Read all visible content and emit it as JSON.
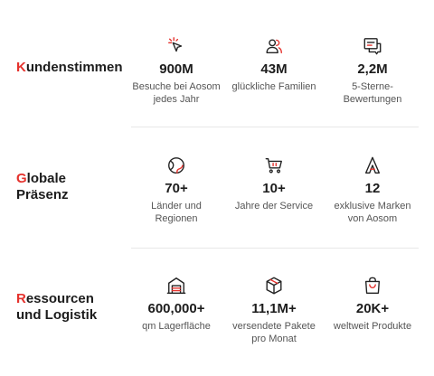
{
  "sections": [
    {
      "title_first": "K",
      "title_rest": "undenstimmen",
      "stats": [
        {
          "icon": "click-sparkle-icon",
          "value": "900M",
          "label_lines": [
            "Besuche bei Aosom",
            "jedes Jahr"
          ]
        },
        {
          "icon": "users-icon",
          "value": "43M",
          "label_lines": [
            "glückliche Familien"
          ]
        },
        {
          "icon": "review-chat-icon",
          "value": "2,2M",
          "label_lines": [
            "5-Sterne-",
            "Bewertungen"
          ]
        }
      ]
    },
    {
      "title_first": "G",
      "title_rest_line1": "lobale",
      "title_line2": "Präsenz",
      "stats": [
        {
          "icon": "globe-icon",
          "value": "70+",
          "label_lines": [
            "Länder und",
            "Regionen"
          ]
        },
        {
          "icon": "shopping-cart-icon",
          "value": "10+",
          "label_lines": [
            "Jahre der Service"
          ]
        },
        {
          "icon": "brand-a-icon",
          "value": "12",
          "label_lines": [
            "exklusive Marken",
            "von Aosom"
          ]
        }
      ]
    },
    {
      "title_first": "R",
      "title_rest_line1": "essourcen",
      "title_line2": "und Logistik",
      "stats": [
        {
          "icon": "warehouse-icon",
          "value": "600,000+",
          "label_lines": [
            "qm Lagerfläche"
          ]
        },
        {
          "icon": "package-icon",
          "value": "11,1M+",
          "label_lines": [
            "versendete Pakete",
            "pro Monat"
          ]
        },
        {
          "icon": "shopping-bag-icon",
          "value": "20K+",
          "label_lines": [
            "weltweit Produkte"
          ]
        }
      ]
    }
  ],
  "colors": {
    "accent": "#e5322d",
    "text": "#1c1c1c",
    "muted": "#555555",
    "divider": "#e8e8e8"
  }
}
